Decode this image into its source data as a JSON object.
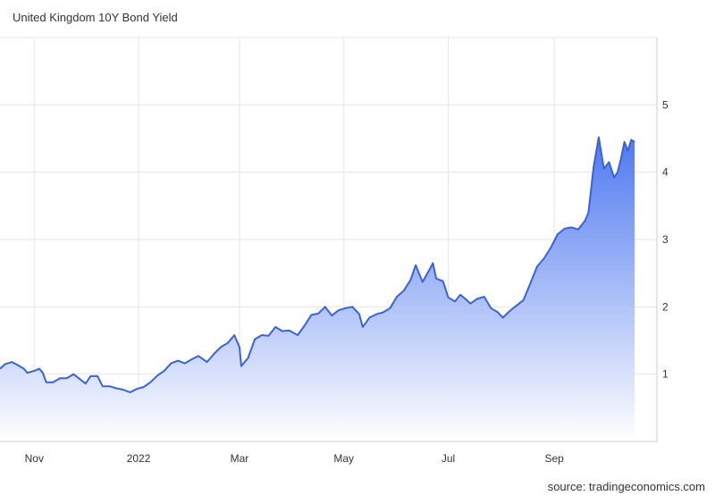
{
  "title": "United Kingdom 10Y Bond Yield",
  "source": "source: tradingeconomics.com",
  "chart_data": {
    "type": "area",
    "title": "United Kingdom 10Y Bond Yield",
    "xlabel": "",
    "ylabel": "",
    "ylim": [
      0,
      6
    ],
    "xlim": [
      "2021-10-12",
      "2022-10-31"
    ],
    "y_axis_position": "right",
    "grid": true,
    "legend": "none",
    "colors": {
      "line": "#3a62dd",
      "fill_top": "#4f79f0",
      "fill_bottom": "#ffffff",
      "grid": "#e6e6e6"
    },
    "y_ticks": [
      1,
      2,
      3,
      4,
      5
    ],
    "x_ticks": [
      {
        "label": "Nov",
        "date": "2021-11-01"
      },
      {
        "label": "2022",
        "date": "2022-01-01"
      },
      {
        "label": "Mar",
        "date": "2022-03-01"
      },
      {
        "label": "May",
        "date": "2022-05-01"
      },
      {
        "label": "Jul",
        "date": "2022-07-01"
      },
      {
        "label": "Sep",
        "date": "2022-09-01"
      }
    ],
    "series": [
      {
        "points": [
          [
            "2021-10-12",
            1.08
          ],
          [
            "2021-10-15",
            1.15
          ],
          [
            "2021-10-19",
            1.18
          ],
          [
            "2021-10-22",
            1.14
          ],
          [
            "2021-10-26",
            1.08
          ],
          [
            "2021-10-28",
            1.02
          ],
          [
            "2021-11-01",
            1.05
          ],
          [
            "2021-11-04",
            1.08
          ],
          [
            "2021-11-06",
            1.02
          ],
          [
            "2021-11-08",
            0.88
          ],
          [
            "2021-11-12",
            0.88
          ],
          [
            "2021-11-16",
            0.94
          ],
          [
            "2021-11-20",
            0.94
          ],
          [
            "2021-11-24",
            1.0
          ],
          [
            "2021-11-28",
            0.92
          ],
          [
            "2021-12-01",
            0.86
          ],
          [
            "2021-12-04",
            0.97
          ],
          [
            "2021-12-08",
            0.97
          ],
          [
            "2021-12-11",
            0.82
          ],
          [
            "2021-12-15",
            0.82
          ],
          [
            "2021-12-19",
            0.79
          ],
          [
            "2021-12-23",
            0.77
          ],
          [
            "2021-12-27",
            0.73
          ],
          [
            "2021-12-31",
            0.78
          ],
          [
            "2022-01-04",
            0.81
          ],
          [
            "2022-01-08",
            0.88
          ],
          [
            "2022-01-12",
            0.98
          ],
          [
            "2022-01-16",
            1.05
          ],
          [
            "2022-01-20",
            1.16
          ],
          [
            "2022-01-24",
            1.2
          ],
          [
            "2022-01-28",
            1.16
          ],
          [
            "2022-02-01",
            1.22
          ],
          [
            "2022-02-05",
            1.27
          ],
          [
            "2022-02-10",
            1.18
          ],
          [
            "2022-02-14",
            1.3
          ],
          [
            "2022-02-18",
            1.4
          ],
          [
            "2022-02-22",
            1.46
          ],
          [
            "2022-02-26",
            1.58
          ],
          [
            "2022-03-01",
            1.4
          ],
          [
            "2022-03-02",
            1.12
          ],
          [
            "2022-03-06",
            1.24
          ],
          [
            "2022-03-10",
            1.52
          ],
          [
            "2022-03-14",
            1.58
          ],
          [
            "2022-03-18",
            1.57
          ],
          [
            "2022-03-22",
            1.7
          ],
          [
            "2022-03-26",
            1.64
          ],
          [
            "2022-03-30",
            1.65
          ],
          [
            "2022-04-04",
            1.58
          ],
          [
            "2022-04-08",
            1.72
          ],
          [
            "2022-04-12",
            1.88
          ],
          [
            "2022-04-16",
            1.9
          ],
          [
            "2022-04-20",
            2.0
          ],
          [
            "2022-04-24",
            1.87
          ],
          [
            "2022-04-28",
            1.95
          ],
          [
            "2022-05-02",
            1.98
          ],
          [
            "2022-05-06",
            2.0
          ],
          [
            "2022-05-10",
            1.89
          ],
          [
            "2022-05-12",
            1.7
          ],
          [
            "2022-05-16",
            1.84
          ],
          [
            "2022-05-20",
            1.89
          ],
          [
            "2022-05-24",
            1.92
          ],
          [
            "2022-05-28",
            1.98
          ],
          [
            "2022-06-01",
            2.15
          ],
          [
            "2022-06-05",
            2.24
          ],
          [
            "2022-06-09",
            2.4
          ],
          [
            "2022-06-12",
            2.62
          ],
          [
            "2022-06-16",
            2.37
          ],
          [
            "2022-06-20",
            2.55
          ],
          [
            "2022-06-22",
            2.65
          ],
          [
            "2022-06-24",
            2.42
          ],
          [
            "2022-06-28",
            2.38
          ],
          [
            "2022-07-01",
            2.14
          ],
          [
            "2022-07-05",
            2.08
          ],
          [
            "2022-07-08",
            2.18
          ],
          [
            "2022-07-11",
            2.12
          ],
          [
            "2022-07-14",
            2.05
          ],
          [
            "2022-07-18",
            2.12
          ],
          [
            "2022-07-22",
            2.15
          ],
          [
            "2022-07-26",
            1.98
          ],
          [
            "2022-07-30",
            1.92
          ],
          [
            "2022-08-02",
            1.84
          ],
          [
            "2022-08-06",
            1.94
          ],
          [
            "2022-08-10",
            2.02
          ],
          [
            "2022-08-14",
            2.1
          ],
          [
            "2022-08-18",
            2.35
          ],
          [
            "2022-08-22",
            2.6
          ],
          [
            "2022-08-26",
            2.72
          ],
          [
            "2022-08-30",
            2.88
          ],
          [
            "2022-09-03",
            3.08
          ],
          [
            "2022-09-07",
            3.16
          ],
          [
            "2022-09-11",
            3.18
          ],
          [
            "2022-09-15",
            3.15
          ],
          [
            "2022-09-19",
            3.28
          ],
          [
            "2022-09-21",
            3.4
          ],
          [
            "2022-09-24",
            4.08
          ],
          [
            "2022-09-27",
            4.52
          ],
          [
            "2022-09-30",
            4.05
          ],
          [
            "2022-10-03",
            4.15
          ],
          [
            "2022-10-06",
            3.92
          ],
          [
            "2022-10-08",
            4.0
          ],
          [
            "2022-10-10",
            4.2
          ],
          [
            "2022-10-12",
            4.45
          ],
          [
            "2022-10-14",
            4.32
          ],
          [
            "2022-10-16",
            4.48
          ],
          [
            "2022-10-18",
            4.45
          ]
        ]
      }
    ]
  }
}
